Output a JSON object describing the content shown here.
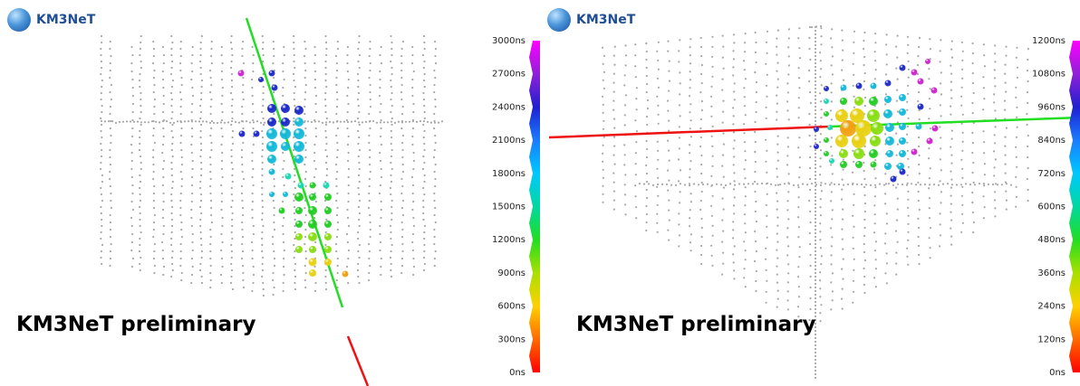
{
  "panels": [
    {
      "logo_text": "KM3NeT",
      "watermark": "KM3NeT preliminary",
      "colorbar_labels": [
        "3000ns",
        "2700ns",
        "2400ns",
        "2100ns",
        "1800ns",
        "1500ns",
        "1200ns",
        "900ns",
        "600ns",
        "300ns",
        "0ns"
      ]
    },
    {
      "logo_text": "KM3NeT",
      "watermark": "KM3NeT preliminary",
      "colorbar_labels": [
        "1200ns",
        "1080ns",
        "960ns",
        "840ns",
        "720ns",
        "600ns",
        "480ns",
        "360ns",
        "240ns",
        "120ns",
        "0ns"
      ]
    }
  ],
  "colors": {
    "track_green": "#22dd22",
    "track_red": "#ee1111",
    "dom_grey": "#a8a8a8",
    "logo_blue": "#1f4e96"
  }
}
